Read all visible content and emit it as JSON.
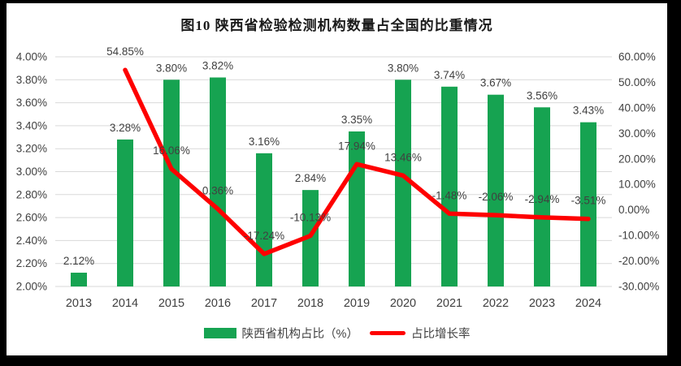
{
  "chart_data": {
    "type": "bar",
    "combo": "bar+line",
    "title": "图10  陕西省检验检测机构数量占全国的比重情况",
    "categories": [
      "2013",
      "2014",
      "2015",
      "2016",
      "2017",
      "2018",
      "2019",
      "2020",
      "2021",
      "2022",
      "2023",
      "2024"
    ],
    "series": [
      {
        "name": "陕西省机构占比（%）",
        "type": "bar",
        "axis": "left",
        "color": "#16a351",
        "values": [
          2.12,
          3.28,
          3.8,
          3.82,
          3.16,
          2.84,
          3.35,
          3.8,
          3.74,
          3.67,
          3.56,
          3.43
        ],
        "labels": [
          "2.12%",
          "3.28%",
          "3.80%",
          "3.82%",
          "3.16%",
          "2.84%",
          "3.35%",
          "3.80%",
          "3.74%",
          "3.67%",
          "3.56%",
          "3.43%"
        ]
      },
      {
        "name": "占比增长率",
        "type": "line",
        "axis": "right",
        "color": "#fe0000",
        "values": [
          null,
          54.85,
          16.06,
          0.36,
          -17.24,
          -10.13,
          17.94,
          13.46,
          -1.48,
          -2.06,
          -2.94,
          -3.51
        ],
        "labels": [
          "",
          "54.85%",
          "16.06%",
          "0.36%",
          "-17.24%",
          "-10.13%",
          "17.94%",
          "13.46%",
          "-1.48%",
          "-2.06%",
          "-2.94%",
          "-3.51%"
        ]
      }
    ],
    "left_axis": {
      "min": 2.0,
      "max": 4.0,
      "step": 0.2,
      "ticks": [
        "4.00%",
        "3.80%",
        "3.60%",
        "3.40%",
        "3.20%",
        "3.00%",
        "2.80%",
        "2.60%",
        "2.40%",
        "2.20%",
        "2.00%"
      ]
    },
    "right_axis": {
      "min": -30,
      "max": 60,
      "step": 10,
      "ticks": [
        "60.00%",
        "50.00%",
        "40.00%",
        "30.00%",
        "20.00%",
        "10.00%",
        "0.00%",
        "-10.00%",
        "-20.00%",
        "-30.00%"
      ]
    },
    "grid": true,
    "grid_color": "#d9d9d9",
    "label_color": "#404040",
    "legend_position": "bottom"
  },
  "legend": {
    "items": [
      {
        "label": "陕西省机构占比（%）",
        "swatch": "bar",
        "color": "#16a351"
      },
      {
        "label": "占比增长率",
        "swatch": "line",
        "color": "#fe0000"
      }
    ]
  }
}
